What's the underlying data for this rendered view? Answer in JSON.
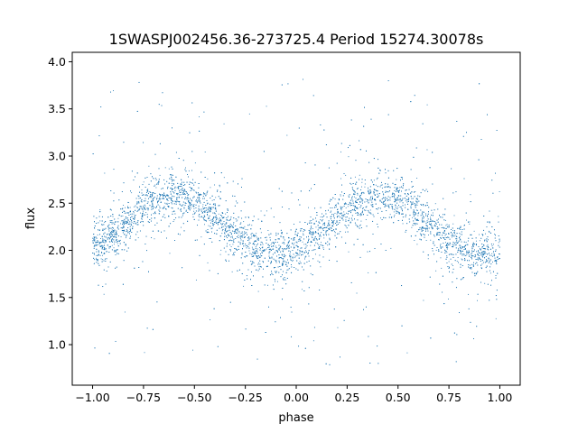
{
  "chart_data": {
    "type": "scatter",
    "title": "1SWASPJ002456.36-273725.4 Period 15274.30078s",
    "xlabel": "phase",
    "ylabel": "flux",
    "xlim": [
      -1.1,
      1.1
    ],
    "ylim": [
      0.57,
      4.1
    ],
    "xticks": [
      -1.0,
      -0.75,
      -0.5,
      -0.25,
      0.0,
      0.25,
      0.5,
      0.75,
      1.0
    ],
    "xtick_labels": [
      "−1.00",
      "−0.75",
      "−0.50",
      "−0.25",
      "0.00",
      "0.25",
      "0.50",
      "0.75",
      "1.00"
    ],
    "yticks": [
      1.0,
      1.5,
      2.0,
      2.5,
      3.0,
      3.5,
      4.0
    ],
    "ytick_labels": [
      "1.0",
      "1.5",
      "2.0",
      "2.5",
      "3.0",
      "3.5",
      "4.0"
    ],
    "grid": false,
    "point_color": "#1f77b4",
    "series_model": {
      "description_of_trend": "sinusoidal, period 1 in phase",
      "mean_flux": 2.27,
      "amplitude": 0.31,
      "peak_phase": 0.4,
      "trough_phase": -0.1,
      "scatter_sigma": 0.12,
      "outlier_range": [
        0.75,
        3.85
      ],
      "phase_range": [
        -1.0,
        1.0
      ],
      "sample_points": [
        {
          "x": -1.0,
          "y": 2.08
        },
        {
          "x": -0.9,
          "y": 2.26
        },
        {
          "x": -0.75,
          "y": 2.47
        },
        {
          "x": -0.6,
          "y": 2.58
        },
        {
          "x": -0.5,
          "y": 2.5
        },
        {
          "x": -0.4,
          "y": 2.38
        },
        {
          "x": -0.25,
          "y": 2.15
        },
        {
          "x": -0.1,
          "y": 1.97
        },
        {
          "x": 0.0,
          "y": 2.05
        },
        {
          "x": 0.1,
          "y": 2.2
        },
        {
          "x": 0.25,
          "y": 2.45
        },
        {
          "x": 0.4,
          "y": 2.58
        },
        {
          "x": 0.5,
          "y": 2.52
        },
        {
          "x": 0.65,
          "y": 2.35
        },
        {
          "x": 0.75,
          "y": 2.17
        },
        {
          "x": 0.9,
          "y": 1.98
        },
        {
          "x": 1.0,
          "y": 2.05
        }
      ]
    }
  }
}
